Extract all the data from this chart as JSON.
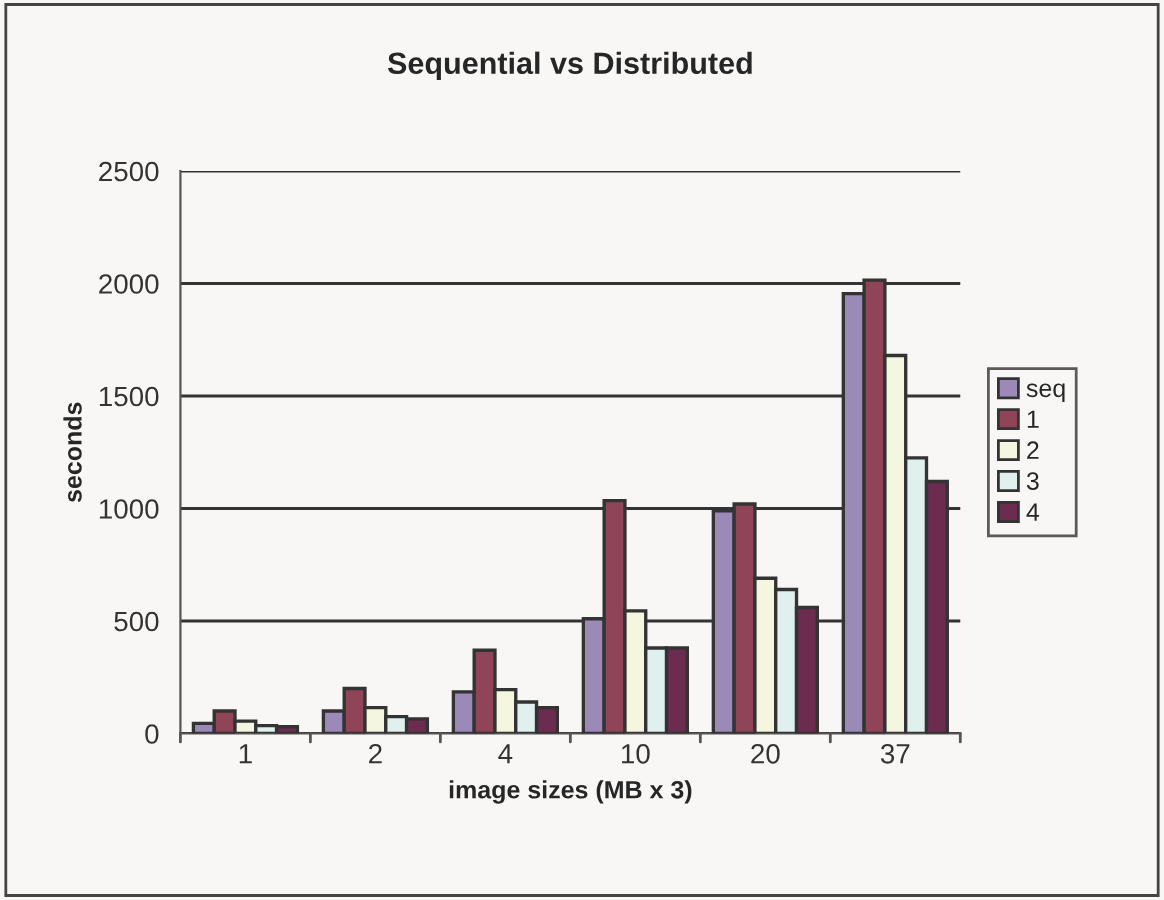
{
  "chart_data": {
    "type": "bar",
    "title": "Sequential vs Distributed",
    "xlabel": "image sizes (MB x 3)",
    "ylabel": "seconds",
    "categories": [
      "1",
      "2",
      "4",
      "10",
      "20",
      "37"
    ],
    "series": [
      {
        "name": "seq",
        "color": "#9b8ab8",
        "values": [
          45,
          100,
          185,
          510,
          990,
          1955
        ]
      },
      {
        "name": "1",
        "color": "#904458",
        "values": [
          100,
          200,
          370,
          1035,
          1020,
          2015
        ]
      },
      {
        "name": "2",
        "color": "#f4f6df",
        "values": [
          55,
          115,
          195,
          545,
          690,
          1680
        ]
      },
      {
        "name": "3",
        "color": "#dff0ee",
        "values": [
          35,
          75,
          140,
          380,
          640,
          1225
        ]
      },
      {
        "name": "4",
        "color": "#6b2c4f",
        "values": [
          30,
          65,
          115,
          380,
          560,
          1120
        ]
      }
    ],
    "ylim": [
      0,
      2500
    ],
    "yticks": [
      0,
      500,
      1000,
      1500,
      2000,
      2500
    ],
    "grid": "y",
    "legend": "right"
  }
}
